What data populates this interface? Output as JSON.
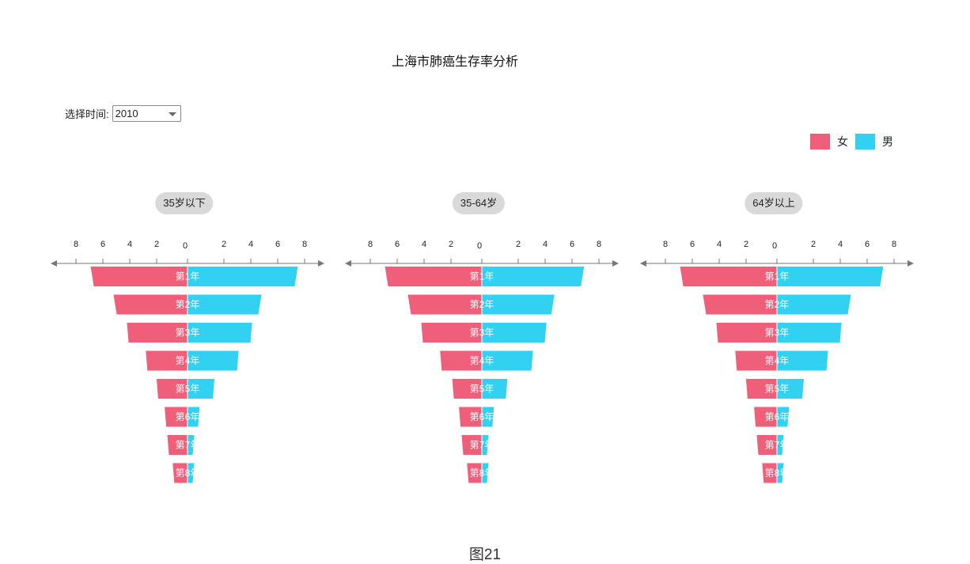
{
  "title": "上海市肺癌生存率分析",
  "filter": {
    "label": "选择时间:",
    "value": "2010"
  },
  "legend": [
    {
      "name": "女",
      "color": "#ef5f7a"
    },
    {
      "name": "男",
      "color": "#33d1f1"
    }
  ],
  "caption": "图21",
  "chart_data": [
    {
      "type": "bar",
      "title": "35岁以下",
      "categories": [
        "第1年",
        "第2年",
        "第3年",
        "第4年",
        "第5年",
        "第6年",
        "第7年",
        "第8年"
      ],
      "series": [
        {
          "name": "女",
          "values": [
            7.2,
            5.5,
            4.5,
            3.1,
            2.3,
            1.7,
            1.5,
            1.1
          ]
        },
        {
          "name": "男",
          "values": [
            8.2,
            5.5,
            4.8,
            3.8,
            2.0,
            0.9,
            0.5,
            0.5
          ]
        }
      ],
      "xlim": [
        -9,
        9
      ],
      "ticks_left": [
        8,
        6,
        4,
        2
      ],
      "ticks_right": [
        2,
        4,
        6,
        8
      ],
      "zero_label": "0"
    },
    {
      "type": "bar",
      "title": "35-64岁",
      "categories": [
        "第1年",
        "第2年",
        "第3年",
        "第4年",
        "第5年",
        "第6年",
        "第7年",
        "第8年"
      ],
      "series": [
        {
          "name": "女",
          "values": [
            7.2,
            5.5,
            4.5,
            3.1,
            2.2,
            1.7,
            1.5,
            1.1
          ]
        },
        {
          "name": "男",
          "values": [
            7.6,
            5.4,
            4.8,
            3.8,
            1.9,
            0.9,
            0.5,
            0.5
          ]
        }
      ],
      "xlim": [
        -9,
        9
      ],
      "ticks_left": [
        8,
        6,
        4,
        2
      ],
      "ticks_right": [
        2,
        4,
        6,
        8
      ],
      "zero_label": "0"
    },
    {
      "type": "bar",
      "title": "64岁以上",
      "categories": [
        "第1年",
        "第2年",
        "第3年",
        "第4年",
        "第5年",
        "第6年",
        "第7年",
        "第8年"
      ],
      "series": [
        {
          "name": "女",
          "values": [
            7.2,
            5.5,
            4.5,
            3.1,
            2.3,
            1.7,
            1.5,
            1.1
          ]
        },
        {
          "name": "男",
          "values": [
            7.9,
            5.5,
            4.8,
            3.8,
            2.0,
            0.9,
            0.5,
            0.5
          ]
        }
      ],
      "xlim": [
        -9,
        9
      ],
      "ticks_left": [
        8,
        6,
        4,
        2
      ],
      "ticks_right": [
        2,
        4,
        6,
        8
      ],
      "zero_label": "0"
    }
  ]
}
